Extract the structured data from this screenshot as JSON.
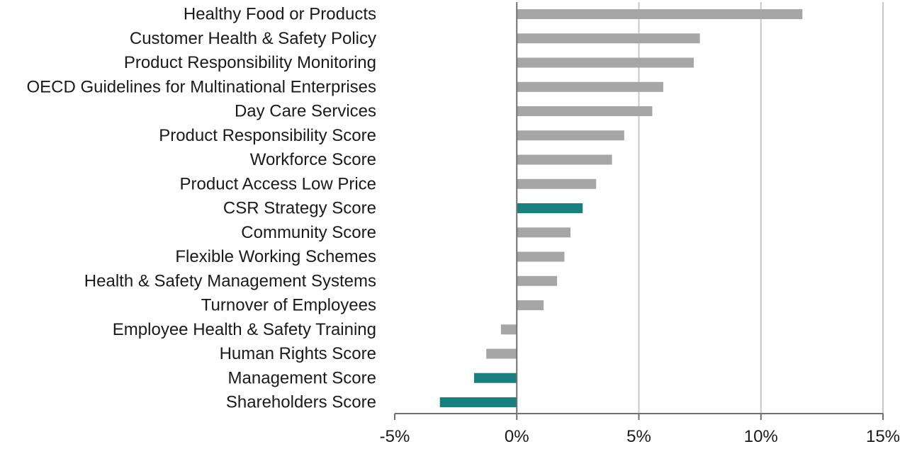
{
  "chart_data": {
    "type": "bar",
    "orientation": "horizontal",
    "categories": [
      "Healthy Food or Products",
      "Customer Health & Safety Policy",
      "Product Responsibility Monitoring",
      "OECD Guidelines for Multinational Enterprises",
      "Day Care Services",
      "Product Responsibility Score",
      "Workforce Score",
      "Product Access Low Price",
      "CSR Strategy Score",
      "Community Score",
      "Flexible Working Schemes",
      "Health & Safety Management Systems",
      "Turnover of Employees",
      "Employee Health & Safety Training",
      "Human Rights Score",
      "Management Score",
      "Shareholders Score"
    ],
    "values": [
      11.7,
      7.5,
      7.25,
      6.0,
      5.55,
      4.4,
      3.9,
      3.25,
      2.7,
      2.2,
      1.95,
      1.65,
      1.1,
      -0.65,
      -1.25,
      -1.75,
      -3.15
    ],
    "highlighted": [
      "CSR Strategy Score",
      "Management Score",
      "Shareholders Score"
    ],
    "colors": {
      "default": "#a6a6a6",
      "highlight": "#1a7f7f",
      "grid": "#c8c8c8",
      "axis": "#707070"
    },
    "xlim": [
      -5,
      15
    ],
    "xticks": [
      -5,
      0,
      5,
      10,
      15
    ],
    "tick_labels": [
      "-5%",
      "0%",
      "5%",
      "10%",
      "15%"
    ],
    "grid": true,
    "title": "",
    "xlabel": "",
    "ylabel": ""
  }
}
